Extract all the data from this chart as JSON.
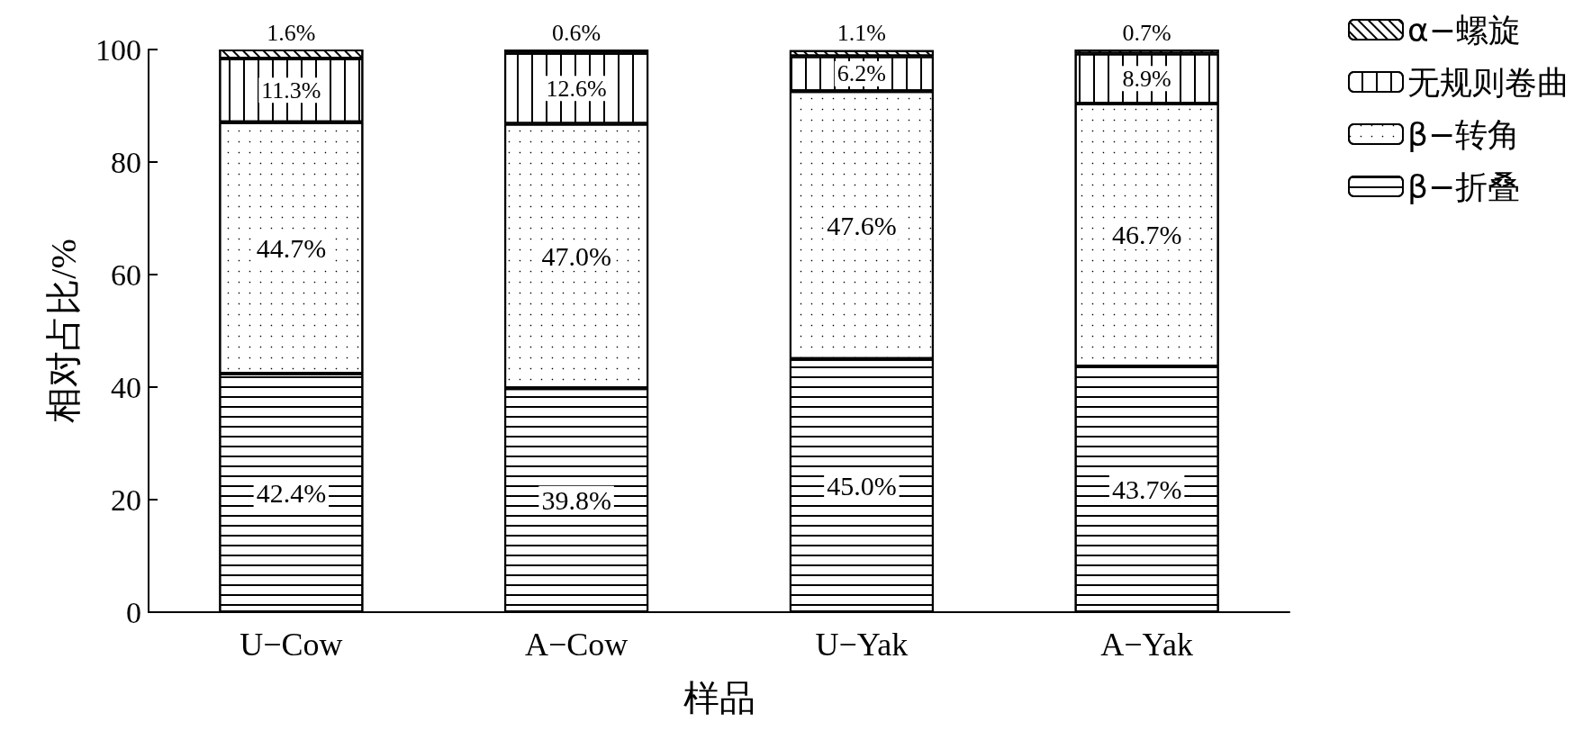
{
  "chart_data": {
    "type": "bar",
    "stacked": true,
    "xlabel": "样品",
    "ylabel": "相对占比/%",
    "categories": [
      "U−Cow",
      "A−Cow",
      "U−Yak",
      "A−Yak"
    ],
    "ylim": [
      0,
      100
    ],
    "yticks": [
      0,
      20,
      40,
      60,
      80,
      100
    ],
    "grid": false,
    "legend": "right",
    "series": [
      {
        "name": "β−折叠",
        "color": "#ffffff",
        "values": [
          42.4,
          39.8,
          45.0,
          43.7
        ],
        "value_labels": [
          "42.4%",
          "39.8%",
          "45.0%",
          "43.7%"
        ]
      },
      {
        "name": "β−转角",
        "color": "#ffffff",
        "values": [
          44.7,
          47.0,
          47.6,
          46.7
        ],
        "value_labels": [
          "44.7%",
          "47.0%",
          "47.6%",
          "46.7%"
        ]
      },
      {
        "name": "无规则卷曲",
        "color": "#ffffff",
        "values": [
          11.3,
          12.6,
          6.2,
          8.9
        ],
        "value_labels": [
          "11.3%",
          "12.6%",
          "6.2%",
          "8.9%"
        ]
      },
      {
        "name": "α−螺旋",
        "color": "#ffffff",
        "values": [
          1.6,
          0.6,
          1.1,
          0.7
        ],
        "value_labels": [
          "1.6%",
          "0.6%",
          "1.1%",
          "0.7%"
        ]
      }
    ]
  }
}
